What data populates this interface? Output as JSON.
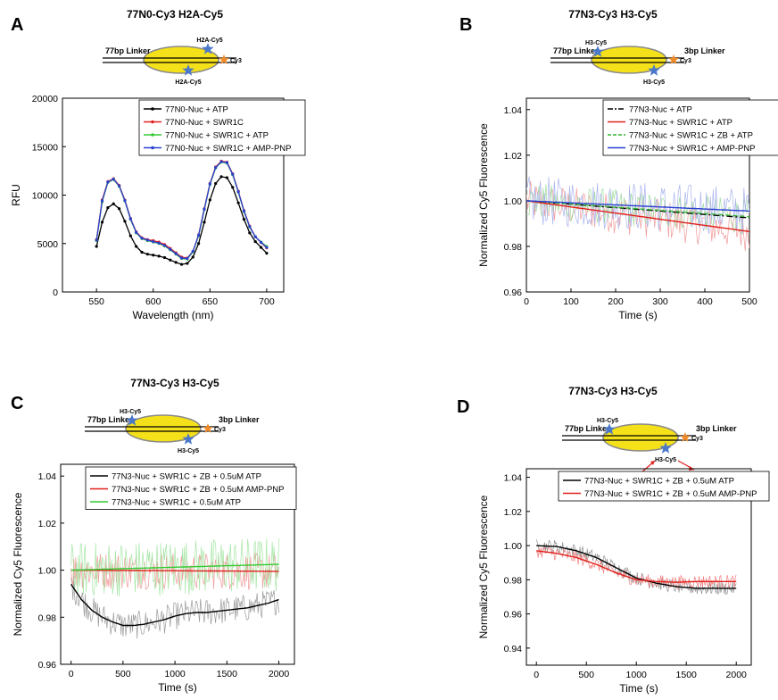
{
  "chart_data": [
    {
      "panel": "A",
      "title": "77N0-Cy3 H2A-Cy5",
      "type": "line",
      "xlabel": "Wavelength (nm)",
      "ylabel": "RFU",
      "xlim": [
        520,
        715
      ],
      "ylim": [
        0,
        20000
      ],
      "xticks": [
        550,
        600,
        650,
        700
      ],
      "yticks": [
        0,
        5000,
        10000,
        15000,
        20000
      ],
      "legend_position": "top-right",
      "schematic": {
        "left_label": "77bp Linker",
        "top_star": "H2A-Cy5",
        "bottom_star": "H2A-Cy5",
        "orange_star": "Cy3"
      },
      "x": [
        550,
        555,
        560,
        565,
        570,
        575,
        580,
        585,
        590,
        595,
        600,
        605,
        610,
        615,
        620,
        625,
        630,
        635,
        640,
        645,
        650,
        655,
        660,
        665,
        670,
        675,
        680,
        685,
        690,
        695,
        700
      ],
      "series": [
        {
          "name": "77N0-Nuc + ATP",
          "color": "#000000",
          "values": [
            4700,
            7200,
            8700,
            9100,
            8600,
            7300,
            5800,
            4700,
            4100,
            3900,
            3800,
            3700,
            3550,
            3300,
            3050,
            2850,
            2950,
            3600,
            5000,
            7200,
            9500,
            11200,
            11900,
            11800,
            10800,
            9200,
            7500,
            6100,
            5200,
            4600,
            4000
          ]
        },
        {
          "name": "77N0-Nuc + SWR1C",
          "color": "#e0201b",
          "values": [
            5400,
            9500,
            11400,
            11700,
            11000,
            9500,
            7600,
            6200,
            5600,
            5400,
            5300,
            5150,
            4900,
            4500,
            4050,
            3600,
            3500,
            4200,
            5900,
            8600,
            11200,
            12900,
            13500,
            13400,
            12200,
            10400,
            8400,
            6800,
            5700,
            5100,
            4550
          ]
        },
        {
          "name": "77N0-Nuc + SWR1C + ATP",
          "color": "#34c934",
          "values": [
            5300,
            9300,
            11300,
            11600,
            10900,
            9400,
            7500,
            6100,
            5500,
            5300,
            5150,
            5000,
            4750,
            4350,
            3900,
            3450,
            3400,
            4150,
            5800,
            8500,
            11100,
            12800,
            13400,
            13300,
            12100,
            10300,
            8300,
            6700,
            5700,
            5150,
            4700
          ]
        },
        {
          "name": "77N0-Nuc + SWR1C + AMP-PNP",
          "color": "#2b3fd1",
          "values": [
            5350,
            9400,
            11350,
            11650,
            10950,
            9450,
            7550,
            6150,
            5550,
            5350,
            5200,
            5050,
            4800,
            4400,
            3950,
            3500,
            3450,
            4200,
            5850,
            8550,
            11150,
            12850,
            13450,
            13350,
            12150,
            10350,
            8350,
            6750,
            5700,
            5120,
            4600
          ]
        }
      ]
    },
    {
      "panel": "B",
      "title": "77N3-Cy3 H3-Cy5",
      "type": "line",
      "xlabel": "Time (s)",
      "ylabel": "Normalized Cy5 Fluorescence",
      "xlim": [
        0,
        500
      ],
      "ylim": [
        0.96,
        1.045
      ],
      "xticks": [
        0,
        100,
        200,
        300,
        400,
        500
      ],
      "yticks": [
        0.96,
        0.98,
        1.0,
        1.02,
        1.04
      ],
      "legend_position": "top-right",
      "schematic": {
        "left_label": "77bp Linker",
        "right_label": "3bp Linker",
        "top_star": "H3-Cy5",
        "bottom_star": "H3-Cy5",
        "orange_star": "Cy3"
      },
      "series": [
        {
          "name": "77N3-Nuc + ATP",
          "color": "#000000",
          "dash": "dashdot",
          "fit": [
            [
              0,
              1.0
            ],
            [
              500,
              0.9925
            ]
          ],
          "noise_amp": 0
        },
        {
          "name": "77N3-Nuc + SWR1C + ATP",
          "color": "#e0201b",
          "fit": [
            [
              0,
              1.0
            ],
            [
              500,
              0.9865
            ]
          ],
          "noise_amp": 0.009,
          "raw_color": "#f19a9a"
        },
        {
          "name": "77N3-Nuc + SWR1C + ZB + ATP",
          "color": "#2fb52f",
          "dash": "dash",
          "fit": [
            [
              0,
              1.0
            ],
            [
              500,
              0.993
            ]
          ],
          "noise_amp": 0.008,
          "raw_color": "#9fdc9f"
        },
        {
          "name": "77N3-Nuc + SWR1C + AMP-PNP",
          "color": "#2b3fd1",
          "fit": [
            [
              0,
              1.0
            ],
            [
              500,
              0.9955
            ]
          ],
          "noise_amp": 0.011,
          "raw_color": "#a9b3ee"
        }
      ]
    },
    {
      "panel": "C",
      "title": "77N3-Cy3 H3-Cy5",
      "type": "line",
      "xlabel": "Time (s)",
      "ylabel": "Normalized Cy5 Fluorescence",
      "xlim": [
        -100,
        2150
      ],
      "ylim": [
        0.96,
        1.045
      ],
      "xticks": [
        0,
        500,
        1000,
        1500,
        2000
      ],
      "yticks": [
        0.96,
        0.98,
        1.0,
        1.02,
        1.04
      ],
      "legend_position": "top",
      "schematic": {
        "left_label": "77bp Linker",
        "right_label": "3bp Linker",
        "top_star": "H3-Cy5",
        "bottom_star": "H3-Cy5",
        "orange_star": "Cy3"
      },
      "series": [
        {
          "name": "77N3-Nuc + SWR1C + ZB + 0.5uM ATP",
          "color": "#000000",
          "raw_color": "#9a9a9a",
          "noise_amp": 0.006,
          "fit": [
            [
              0,
              0.994
            ],
            [
              100,
              0.9875
            ],
            [
              200,
              0.983
            ],
            [
              300,
              0.98
            ],
            [
              400,
              0.978
            ],
            [
              500,
              0.9765
            ],
            [
              600,
              0.9765
            ],
            [
              700,
              0.977
            ],
            [
              800,
              0.978
            ],
            [
              900,
              0.979
            ],
            [
              1000,
              0.9805
            ],
            [
              1100,
              0.9815
            ],
            [
              1200,
              0.982
            ],
            [
              1300,
              0.982
            ],
            [
              1400,
              0.9825
            ],
            [
              1500,
              0.983
            ],
            [
              1600,
              0.9835
            ],
            [
              1700,
              0.984
            ],
            [
              1800,
              0.985
            ],
            [
              1900,
              0.986
            ],
            [
              2000,
              0.9875
            ]
          ]
        },
        {
          "name": "77N3-Nuc + SWR1C + ZB + 0.5uM AMP-PNP",
          "color": "#e0201b",
          "raw_color": "#f19a9a",
          "noise_amp": 0.008,
          "fit": [
            [
              0,
              1.0
            ],
            [
              2000,
              0.9995
            ]
          ]
        },
        {
          "name": "77N3-Nuc + SWR1C + 0.5uM ATP",
          "color": "#34c934",
          "raw_color": "#a6e6a6",
          "noise_amp": 0.012,
          "fit": [
            [
              0,
              1.0
            ],
            [
              2000,
              1.0025
            ]
          ]
        }
      ]
    },
    {
      "panel": "D",
      "title": "77N3-Cy3 H3-Cy5",
      "type": "line",
      "xlabel": "Time (s)",
      "ylabel": "Normalized Cy5 Fluorescence",
      "xlim": [
        -100,
        2150
      ],
      "ylim": [
        0.93,
        1.045
      ],
      "xticks": [
        0,
        500,
        1000,
        1500,
        2000
      ],
      "yticks": [
        0.94,
        0.96,
        0.98,
        1.0,
        1.02,
        1.04
      ],
      "legend_position": "top",
      "schematic": {
        "left_label": "77bp Linker",
        "right_label": "3bp Linker",
        "top_star": "H3-Cy5",
        "bottom_star": "H3-Cy5",
        "orange_star": "Cy3"
      },
      "series": [
        {
          "name": "77N3-Nuc + SWR1C + ZB + 0.5uM ATP",
          "color": "#000000",
          "raw_color": "#8f8f8f",
          "noise_amp": 0.004,
          "fit": [
            [
              0,
              1.0
            ],
            [
              200,
              0.9995
            ],
            [
              400,
              0.997
            ],
            [
              600,
              0.993
            ],
            [
              800,
              0.987
            ],
            [
              1000,
              0.981
            ],
            [
              1200,
              0.978
            ],
            [
              1400,
              0.976
            ],
            [
              1600,
              0.975
            ],
            [
              1800,
              0.975
            ],
            [
              2000,
              0.975
            ]
          ]
        },
        {
          "name": "77N3-Nuc + SWR1C + ZB + 0.5uM AMP-PNP",
          "color": "#e0201b",
          "raw_color": "#f07f7f",
          "noise_amp": 0.004,
          "fit": [
            [
              0,
              0.997
            ],
            [
              200,
              0.9955
            ],
            [
              400,
              0.993
            ],
            [
              600,
              0.989
            ],
            [
              800,
              0.984
            ],
            [
              1000,
              0.98
            ],
            [
              1200,
              0.979
            ],
            [
              1400,
              0.9785
            ],
            [
              1600,
              0.979
            ],
            [
              1800,
              0.979
            ],
            [
              2000,
              0.979
            ]
          ]
        }
      ]
    }
  ]
}
